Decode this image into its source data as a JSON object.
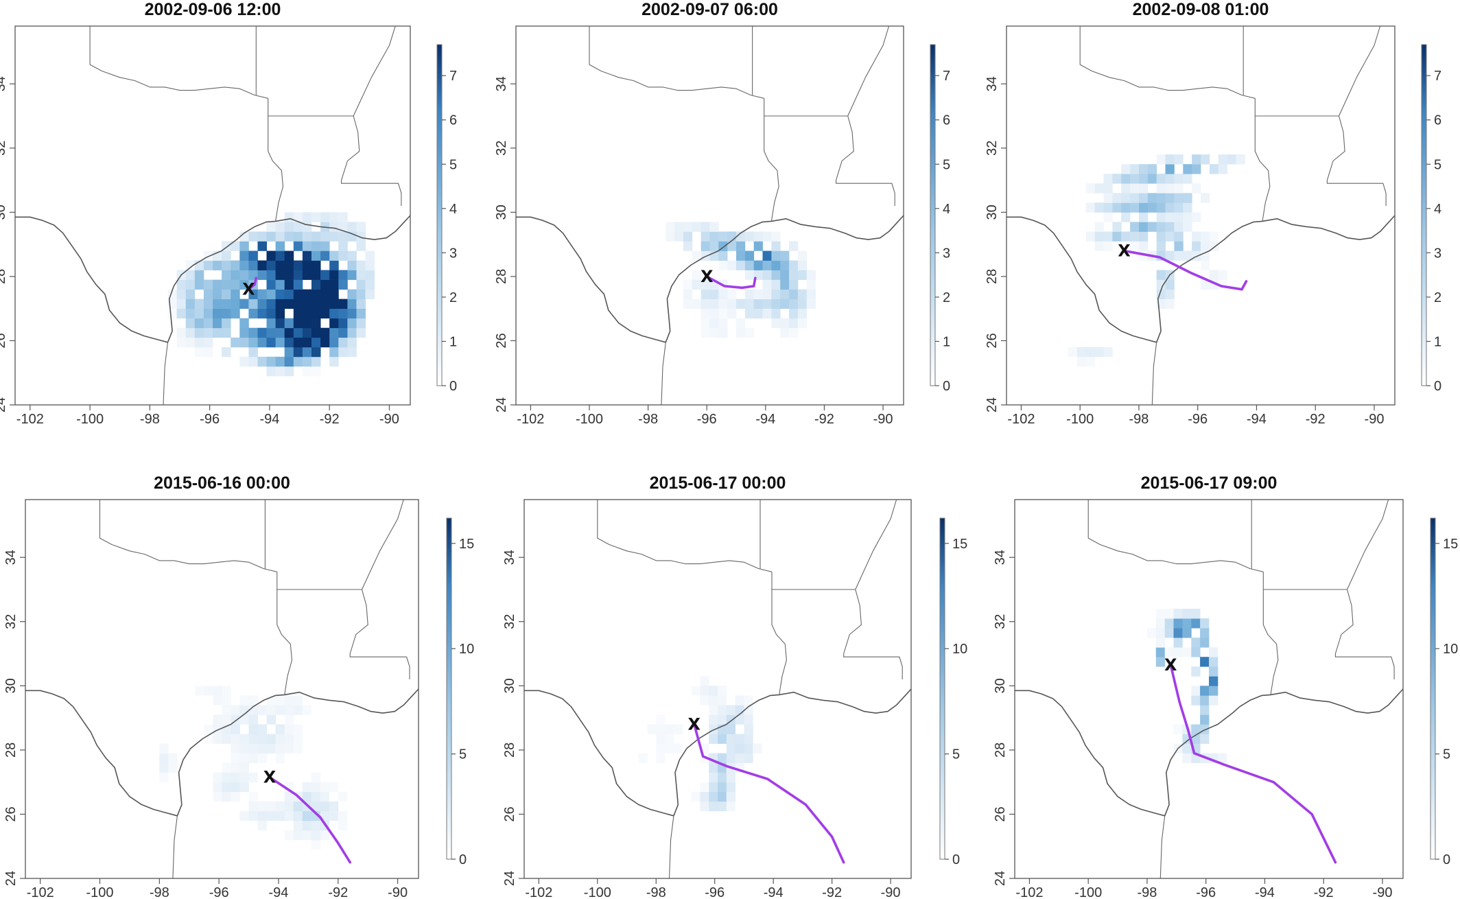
{
  "colors": {
    "low": "#f4f8fd",
    "mid": "#6faad6",
    "high": "#08306b",
    "track": "#a23de6"
  },
  "icons": {
    "marker": "x-marker"
  },
  "axis": {
    "lon_ticks": [
      "-102",
      "-100",
      "-98",
      "-96",
      "-94",
      "-92",
      "-90"
    ],
    "lat_ticks": [
      "24",
      "26",
      "28",
      "30",
      "32",
      "34"
    ],
    "lon_values": [
      -102,
      -100,
      -98,
      -96,
      -94,
      -92,
      -90
    ],
    "lat_values": [
      24,
      26,
      28,
      30,
      32,
      34
    ],
    "lon_range": [
      -102.5,
      -89.3
    ],
    "lat_range": [
      24,
      35.8
    ]
  },
  "marker_label": "X",
  "panels": [
    {
      "title": "2002-09-06 12:00",
      "colorbar_ticks": [
        "0",
        "1",
        "2",
        "3",
        "4",
        "5",
        "6",
        "7"
      ],
      "colorbar_values": [
        0,
        1,
        2,
        3,
        4,
        5,
        6,
        7
      ],
      "vmax": 7.7,
      "marker": [
        -94.7,
        27.6
      ],
      "track": [
        [
          -94.7,
          27.6
        ],
        [
          -94.5,
          27.75
        ],
        [
          -94.45,
          27.95
        ]
      ],
      "blobs": [
        {
          "cx": -93.2,
          "cy": 27.6,
          "rx": 2.4,
          "ry": 1.7,
          "v": 6.5,
          "ang": 30
        },
        {
          "cx": -92.2,
          "cy": 26.9,
          "rx": 1.2,
          "ry": 1.3,
          "v": 7.2,
          "ang": 0
        },
        {
          "cx": -93.6,
          "cy": 28.6,
          "rx": 1.6,
          "ry": 0.5,
          "v": 5.5,
          "ang": -10
        },
        {
          "cx": -95.5,
          "cy": 28.2,
          "rx": 1.4,
          "ry": 0.5,
          "v": 3.0,
          "ang": 20
        },
        {
          "cx": -96.3,
          "cy": 27.1,
          "rx": 0.8,
          "ry": 1.2,
          "v": 2.4,
          "ang": 0
        },
        {
          "cx": -94.6,
          "cy": 26.2,
          "rx": 2.2,
          "ry": 0.7,
          "v": 1.6,
          "ang": -20
        },
        {
          "cx": -95.3,
          "cy": 27.3,
          "rx": 0.8,
          "ry": 0.8,
          "v": 0.9,
          "ang": 0
        },
        {
          "cx": -93.0,
          "cy": 25.8,
          "rx": 1.2,
          "ry": 0.6,
          "v": 4.5,
          "ang": 20
        }
      ]
    },
    {
      "title": "2002-09-07 06:00",
      "colorbar_ticks": [
        "0",
        "1",
        "2",
        "3",
        "4",
        "5",
        "6",
        "7"
      ],
      "colorbar_values": [
        0,
        1,
        2,
        3,
        4,
        5,
        6,
        7
      ],
      "vmax": 7.7,
      "marker": [
        -96.0,
        28.0
      ],
      "track": [
        [
          -96.0,
          28.0
        ],
        [
          -95.4,
          27.7
        ],
        [
          -94.8,
          27.65
        ],
        [
          -94.4,
          27.7
        ],
        [
          -94.35,
          27.95
        ]
      ],
      "blobs": [
        {
          "cx": -95.2,
          "cy": 28.9,
          "rx": 1.8,
          "ry": 0.5,
          "v": 3.2,
          "ang": -15
        },
        {
          "cx": -94.0,
          "cy": 28.6,
          "rx": 0.9,
          "ry": 0.6,
          "v": 3.0,
          "ang": 0
        },
        {
          "cx": -93.2,
          "cy": 27.6,
          "rx": 0.7,
          "ry": 1.1,
          "v": 2.8,
          "ang": 0
        },
        {
          "cx": -96.0,
          "cy": 27.5,
          "rx": 0.8,
          "ry": 0.6,
          "v": 1.2,
          "ang": 0
        },
        {
          "cx": -94.4,
          "cy": 27.1,
          "rx": 0.7,
          "ry": 0.4,
          "v": 1.8,
          "ang": 0
        },
        {
          "cx": -95.3,
          "cy": 26.4,
          "rx": 1.0,
          "ry": 0.5,
          "v": 0.6,
          "ang": 0
        }
      ]
    },
    {
      "title": "2002-09-08 01:00",
      "colorbar_ticks": [
        "0",
        "1",
        "2",
        "3",
        "4",
        "5",
        "6",
        "7"
      ],
      "colorbar_values": [
        0,
        1,
        2,
        3,
        4,
        5,
        6,
        7
      ],
      "vmax": 7.7,
      "marker": [
        -98.5,
        28.8
      ],
      "track": [
        [
          -98.5,
          28.8
        ],
        [
          -97.3,
          28.6
        ],
        [
          -96.2,
          28.1
        ],
        [
          -95.2,
          27.7
        ],
        [
          -94.5,
          27.6
        ],
        [
          -94.35,
          27.85
        ]
      ],
      "blobs": [
        {
          "cx": -97.0,
          "cy": 31.3,
          "rx": 2.2,
          "ry": 0.35,
          "v": 4.0,
          "ang": 10
        },
        {
          "cx": -97.6,
          "cy": 30.3,
          "rx": 1.8,
          "ry": 0.35,
          "v": 3.6,
          "ang": 5
        },
        {
          "cx": -98.0,
          "cy": 29.5,
          "rx": 1.6,
          "ry": 0.35,
          "v": 3.0,
          "ang": 10
        },
        {
          "cx": -96.8,
          "cy": 29.0,
          "rx": 1.2,
          "ry": 0.5,
          "v": 2.2,
          "ang": 0
        },
        {
          "cx": -97.1,
          "cy": 27.9,
          "rx": 0.25,
          "ry": 0.9,
          "v": 2.5,
          "ang": 0
        },
        {
          "cx": -99.6,
          "cy": 25.6,
          "rx": 0.8,
          "ry": 0.3,
          "v": 0.9,
          "ang": 0
        },
        {
          "cx": -95.6,
          "cy": 28.0,
          "rx": 0.6,
          "ry": 0.4,
          "v": 0.8,
          "ang": 0
        }
      ]
    },
    {
      "title": "2015-06-16 00:00",
      "colorbar_ticks": [
        "0",
        "5",
        "10",
        "15"
      ],
      "colorbar_values": [
        0,
        5,
        10,
        15
      ],
      "vmax": 16.2,
      "marker": [
        -94.3,
        27.15
      ],
      "track": [
        [
          -94.3,
          27.15
        ],
        [
          -93.4,
          26.6
        ],
        [
          -92.6,
          25.9
        ],
        [
          -92.0,
          25.1
        ],
        [
          -91.6,
          24.5
        ]
      ],
      "blobs": [
        {
          "cx": -94.8,
          "cy": 28.6,
          "rx": 1.6,
          "ry": 1.0,
          "v": 2.0,
          "ang": 0
        },
        {
          "cx": -92.9,
          "cy": 26.1,
          "rx": 1.0,
          "ry": 0.9,
          "v": 3.0,
          "ang": 0
        },
        {
          "cx": -95.5,
          "cy": 26.9,
          "rx": 1.0,
          "ry": 0.6,
          "v": 1.5,
          "ang": 0
        },
        {
          "cx": -94.6,
          "cy": 25.9,
          "rx": 0.8,
          "ry": 0.5,
          "v": 1.6,
          "ang": 0
        },
        {
          "cx": -97.8,
          "cy": 27.6,
          "rx": 0.4,
          "ry": 0.8,
          "v": 1.2,
          "ang": 0
        },
        {
          "cx": -96.3,
          "cy": 29.8,
          "rx": 1.0,
          "ry": 0.4,
          "v": 0.7,
          "ang": 0
        },
        {
          "cx": -93.4,
          "cy": 29.4,
          "rx": 0.7,
          "ry": 0.3,
          "v": 1.0,
          "ang": 0
        }
      ]
    },
    {
      "title": "2015-06-17 00:00",
      "colorbar_ticks": [
        "0",
        "5",
        "10",
        "15"
      ],
      "colorbar_values": [
        0,
        5,
        10,
        15
      ],
      "vmax": 16.2,
      "marker": [
        -96.7,
        28.8
      ],
      "track": [
        [
          -96.7,
          28.8
        ],
        [
          -96.4,
          27.8
        ],
        [
          -95.6,
          27.5
        ],
        [
          -94.2,
          27.1
        ],
        [
          -92.9,
          26.3
        ],
        [
          -92.0,
          25.3
        ],
        [
          -91.6,
          24.5
        ]
      ],
      "blobs": [
        {
          "cx": -95.8,
          "cy": 27.8,
          "rx": 0.45,
          "ry": 1.5,
          "v": 4.0,
          "ang": 0
        },
        {
          "cx": -95.2,
          "cy": 28.8,
          "rx": 0.5,
          "ry": 0.8,
          "v": 3.0,
          "ang": 0
        },
        {
          "cx": -95.0,
          "cy": 28.0,
          "rx": 0.5,
          "ry": 0.6,
          "v": 2.2,
          "ang": 0
        },
        {
          "cx": -95.9,
          "cy": 26.5,
          "rx": 0.7,
          "ry": 0.5,
          "v": 2.5,
          "ang": 0
        },
        {
          "cx": -97.7,
          "cy": 28.5,
          "rx": 0.8,
          "ry": 1.2,
          "v": 0.8,
          "ang": 0
        },
        {
          "cx": -96.2,
          "cy": 29.8,
          "rx": 0.6,
          "ry": 0.5,
          "v": 1.2,
          "ang": 0
        },
        {
          "cx": -98.6,
          "cy": 27.5,
          "rx": 0.5,
          "ry": 0.9,
          "v": 0.5,
          "ang": 0
        }
      ]
    },
    {
      "title": "2015-06-17 09:00",
      "colorbar_ticks": [
        "0",
        "5",
        "10",
        "15"
      ],
      "colorbar_values": [
        0,
        5,
        10,
        15
      ],
      "vmax": 16.2,
      "marker": [
        -97.2,
        30.65
      ],
      "track": [
        [
          -97.2,
          30.65
        ],
        [
          -96.9,
          29.5
        ],
        [
          -96.6,
          28.6
        ],
        [
          -96.4,
          27.9
        ],
        [
          -95.4,
          27.55
        ],
        [
          -93.7,
          27.0
        ],
        [
          -92.4,
          26.0
        ],
        [
          -91.6,
          24.5
        ]
      ],
      "blobs": [
        {
          "cx": -96.6,
          "cy": 31.8,
          "rx": 0.7,
          "ry": 0.4,
          "v": 11.0,
          "ang": 0
        },
        {
          "cx": -96.1,
          "cy": 30.9,
          "rx": 0.3,
          "ry": 0.7,
          "v": 10.0,
          "ang": 0
        },
        {
          "cx": -95.9,
          "cy": 30.2,
          "rx": 0.3,
          "ry": 0.6,
          "v": 13.0,
          "ang": 0
        },
        {
          "cx": -96.2,
          "cy": 29.1,
          "rx": 0.35,
          "ry": 0.7,
          "v": 7.0,
          "ang": 0
        },
        {
          "cx": -96.5,
          "cy": 28.3,
          "rx": 0.5,
          "ry": 0.5,
          "v": 4.0,
          "ang": 0
        },
        {
          "cx": -97.6,
          "cy": 30.9,
          "rx": 0.2,
          "ry": 0.3,
          "v": 10.0,
          "ang": 0
        },
        {
          "cx": -97.0,
          "cy": 31.6,
          "rx": 0.8,
          "ry": 0.7,
          "v": 2.5,
          "ang": 0
        },
        {
          "cx": -96.0,
          "cy": 27.8,
          "rx": 0.8,
          "ry": 0.3,
          "v": 2.0,
          "ang": 0
        }
      ]
    }
  ]
}
